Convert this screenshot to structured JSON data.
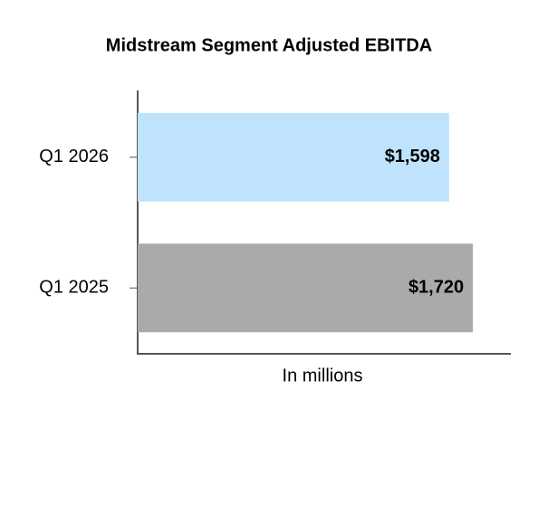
{
  "chart_data": {
    "type": "hbar",
    "title": "Midstream Segment Adjusted EBITDA",
    "categories": [
      "Q1 2026",
      "Q1 2025"
    ],
    "values": [
      1598,
      1720
    ],
    "value_labels": [
      "$1,598",
      "$1,720"
    ],
    "colors": [
      "#bfe3fc",
      "#aaaaaa"
    ],
    "xlabel": "In millions",
    "xlim": [
      0,
      1910
    ]
  }
}
